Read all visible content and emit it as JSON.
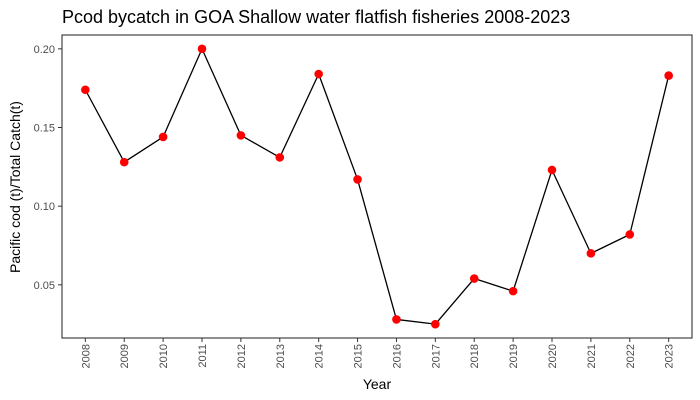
{
  "chart_data": {
    "type": "line",
    "title": "Pcod bycatch in GOA Shallow water flatfish fisheries 2008-2023",
    "xlabel": "Year",
    "ylabel": "Pacific cod (t)/Total Catch(t)",
    "x": [
      2008,
      2009,
      2010,
      2011,
      2012,
      2013,
      2014,
      2015,
      2016,
      2017,
      2018,
      2019,
      2020,
      2021,
      2022,
      2023
    ],
    "x_tick_labels": [
      "2008",
      "2009",
      "2010",
      "2011",
      "2012",
      "2013",
      "2014",
      "2015",
      "2016",
      "2017",
      "2018",
      "2019",
      "2020",
      "2021",
      "2022",
      "2023"
    ],
    "series": [
      {
        "values": [
          0.174,
          0.128,
          0.144,
          0.2,
          0.145,
          0.131,
          0.184,
          0.117,
          0.028,
          0.025,
          0.054,
          0.046,
          0.123,
          0.07,
          0.082,
          0.183
        ]
      }
    ],
    "y_ticks": [
      0.05,
      0.1,
      0.15,
      0.2
    ],
    "y_tick_labels": [
      "0.05",
      "0.10",
      "0.15",
      "0.20"
    ],
    "ylim": [
      0.0162,
      0.2088
    ],
    "xlim": [
      2007.4,
      2023.6
    ],
    "grid": false,
    "line_color": "#000000",
    "point_color": "#ff0000"
  }
}
